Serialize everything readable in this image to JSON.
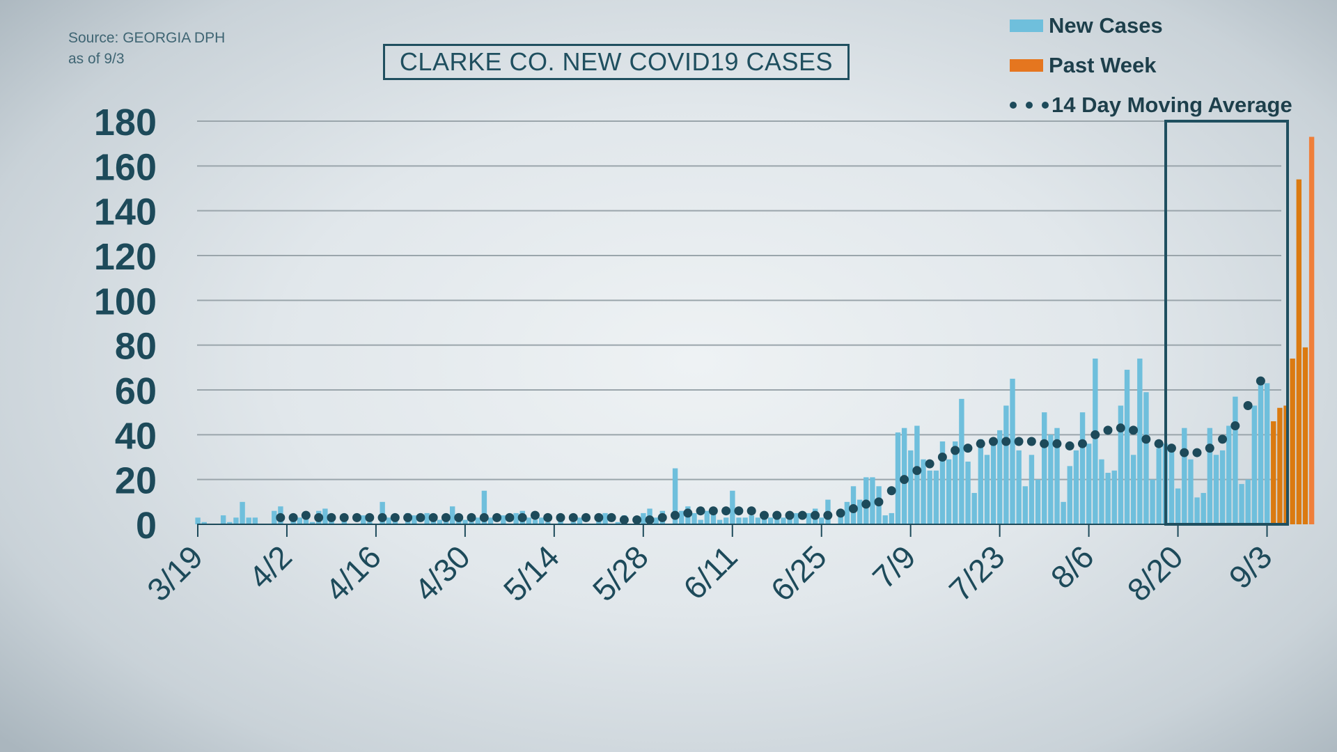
{
  "source": {
    "line1": "Source: GEORGIA DPH",
    "line2": "as of 9/3"
  },
  "title": "CLARKE CO. NEW COVID19 CASES",
  "legend": [
    {
      "label": "New Cases",
      "color": "#6fbfdc",
      "type": "bar"
    },
    {
      "label": "Past Week",
      "color": "#e5761f",
      "type": "bar"
    },
    {
      "label": "14 Day Moving Average",
      "color": "#1d4a5a",
      "type": "dots"
    }
  ],
  "colors": {
    "new_cases": "#6fbfdc",
    "past_week": "#db7a10",
    "past_week_last": "#ef7f3a",
    "avg_dot": "#1d4a5a",
    "axis": "#1d4a5a",
    "grid": "#9aa5ab",
    "highlight_box": "#1f4f5f"
  },
  "chart_data": {
    "type": "bar",
    "title": "CLARKE CO. NEW COVID19 CASES",
    "xlabel": "",
    "ylabel": "",
    "ylim": [
      0,
      180
    ],
    "yticks": [
      0,
      20,
      40,
      60,
      80,
      100,
      120,
      140,
      160,
      180
    ],
    "xtick_labels": [
      "3/19",
      "4/2",
      "4/16",
      "4/30",
      "5/14",
      "5/28",
      "6/11",
      "6/25",
      "7/9",
      "7/23",
      "8/6",
      "8/20",
      "9/3"
    ],
    "start_date": "3/19",
    "end_date": "9/3",
    "grid": true,
    "legend_position": "top-right",
    "series": [
      {
        "name": "New Cases",
        "values": [
          3,
          1,
          0,
          0,
          4,
          1,
          3,
          10,
          3,
          3,
          0,
          0,
          6,
          8,
          0,
          3,
          3,
          3,
          1,
          6,
          7,
          3,
          0,
          2,
          0,
          0,
          4,
          1,
          0,
          10,
          3,
          3,
          0,
          5,
          4,
          0,
          5,
          2,
          2,
          4,
          8,
          2,
          2,
          1,
          3,
          15,
          3,
          0,
          4,
          0,
          5,
          6,
          3,
          2,
          3,
          1,
          0,
          2,
          0,
          1,
          3,
          0,
          0,
          2,
          5,
          0,
          1,
          4,
          0,
          2,
          5,
          7,
          3,
          6,
          0,
          25,
          6,
          8,
          5,
          2,
          6,
          6,
          2,
          3,
          15,
          3,
          3,
          4,
          3,
          3,
          3,
          5,
          3,
          4,
          5,
          0,
          5,
          7,
          3,
          11,
          0,
          4,
          10,
          17,
          11,
          21,
          21,
          17,
          4,
          5,
          41,
          43,
          33,
          44,
          29,
          24,
          24,
          37,
          29,
          37,
          56,
          28,
          14,
          38,
          31,
          38,
          42,
          53,
          65,
          33,
          17,
          31,
          20,
          50,
          40,
          43,
          10,
          26,
          33,
          50,
          36,
          74,
          29,
          23,
          24,
          53,
          69,
          31,
          74,
          59,
          20,
          34,
          36,
          33,
          16,
          43,
          29,
          12,
          14,
          43,
          31,
          33,
          44,
          57,
          18,
          20,
          53,
          64,
          63,
          46,
          52,
          53,
          74,
          154,
          79,
          173
        ]
      },
      {
        "name": "Past Week",
        "values_last_7_days": [
          46,
          52,
          53,
          74,
          154,
          79,
          173
        ]
      },
      {
        "name": "14 Day Moving Average",
        "values": [
          null,
          null,
          null,
          null,
          null,
          null,
          null,
          null,
          null,
          null,
          null,
          null,
          null,
          3,
          3,
          3,
          4,
          4,
          4,
          3,
          3,
          3,
          3,
          3,
          3,
          3,
          3,
          3,
          3,
          3,
          3,
          3,
          3,
          3,
          3,
          3,
          3,
          3,
          3,
          3,
          3,
          3,
          3,
          3,
          3,
          3,
          3,
          3,
          3,
          3,
          3,
          3,
          4,
          4,
          4,
          3,
          3,
          3,
          3,
          3,
          3,
          3,
          3,
          3,
          3,
          3,
          2,
          2,
          2,
          2,
          2,
          2,
          2,
          3,
          3,
          4,
          5,
          5,
          5,
          6,
          6,
          6,
          6,
          6,
          6,
          6,
          6,
          6,
          5,
          4,
          4,
          4,
          4,
          4,
          4,
          4,
          4,
          4,
          4,
          4,
          4,
          5,
          6,
          7,
          8,
          9,
          9,
          10,
          12,
          15,
          18,
          20,
          22,
          24,
          26,
          27,
          28,
          30,
          32,
          33,
          33,
          34,
          35,
          36,
          37,
          37,
          37,
          37,
          37,
          37,
          37,
          37,
          36,
          36,
          36,
          36,
          35,
          35,
          35,
          36,
          38,
          40,
          41,
          42,
          43,
          43,
          43,
          42,
          40,
          38,
          37,
          36,
          35,
          34,
          33,
          32,
          32,
          32,
          33,
          34,
          36,
          38,
          41,
          44,
          48,
          53,
          58,
          64
        ]
      }
    ]
  }
}
